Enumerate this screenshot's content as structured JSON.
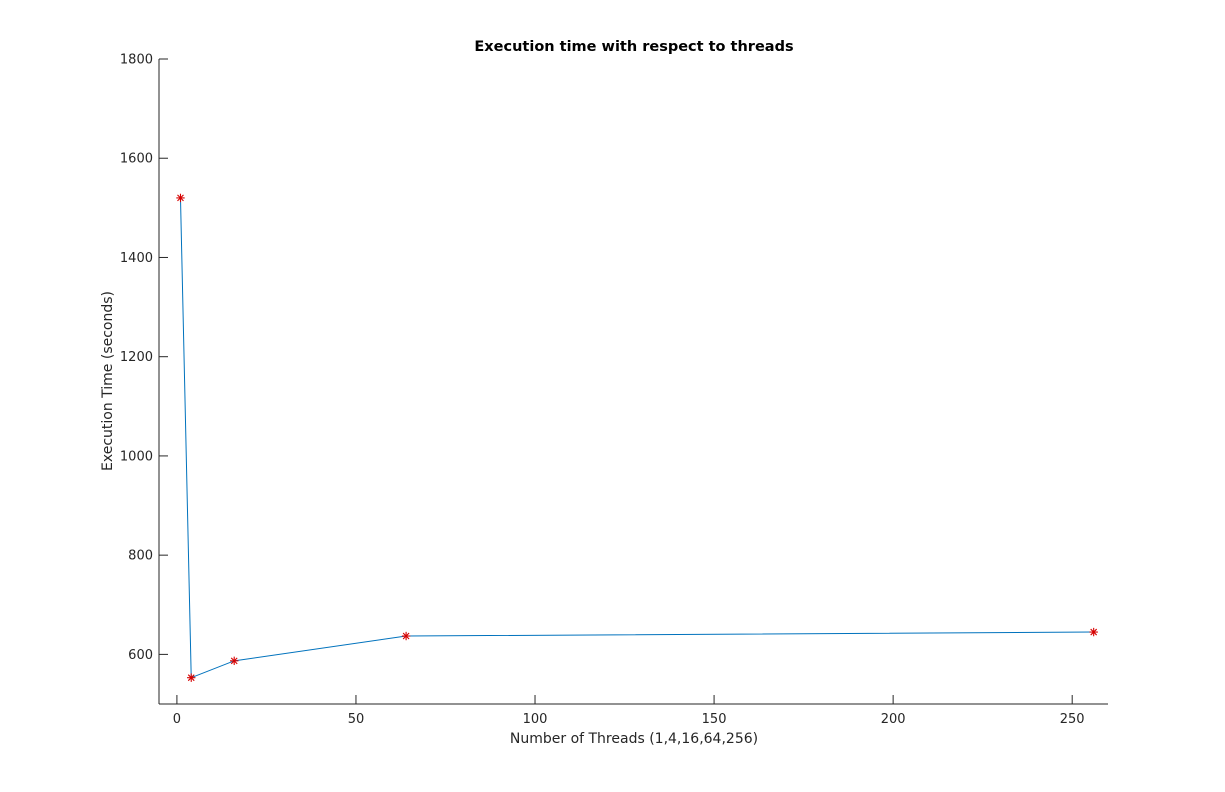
{
  "chart_data": {
    "type": "line",
    "title": "Execution time with respect to threads",
    "xlabel": "Number of Threads (1,4,16,64,256)",
    "ylabel": "Execution Time (seconds)",
    "xlim": [
      -5,
      260
    ],
    "ylim": [
      500,
      1800
    ],
    "xticks": [
      0,
      50,
      100,
      150,
      200,
      250
    ],
    "yticks": [
      600,
      800,
      1000,
      1200,
      1400,
      1600,
      1800
    ],
    "grid": false,
    "series": [
      {
        "x": [
          1,
          4,
          16,
          64,
          256
        ],
        "y": [
          1520,
          553,
          587,
          637,
          645
        ],
        "line_color": "#0072BD",
        "marker": "*",
        "marker_color": "#D60000"
      }
    ]
  }
}
